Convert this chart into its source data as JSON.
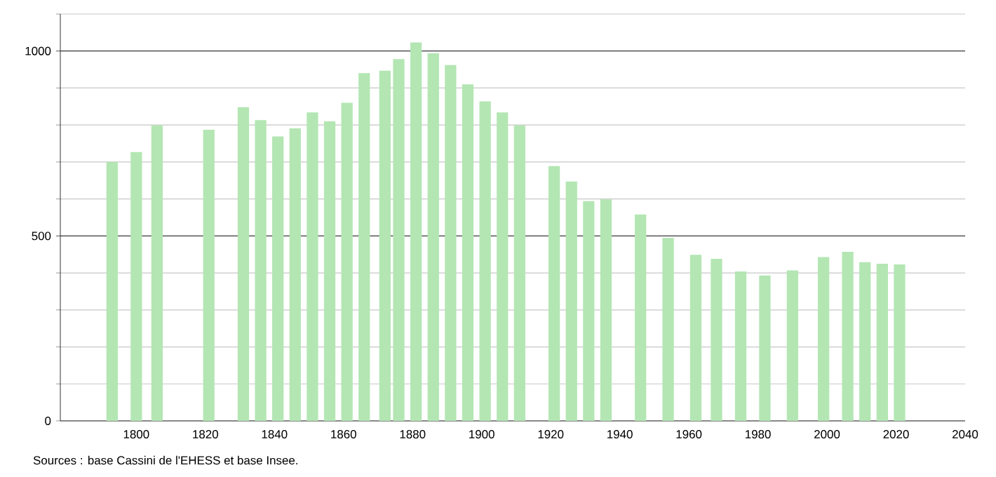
{
  "chart_data": {
    "type": "bar",
    "x": [
      1793,
      1800,
      1806,
      1821,
      1831,
      1836,
      1841,
      1846,
      1851,
      1856,
      1861,
      1866,
      1872,
      1876,
      1881,
      1886,
      1891,
      1896,
      1901,
      1906,
      1911,
      1921,
      1926,
      1931,
      1936,
      1946,
      1954,
      1962,
      1968,
      1975,
      1982,
      1990,
      1999,
      2006,
      2011,
      2016,
      2021
    ],
    "values": [
      700,
      727,
      799,
      787,
      848,
      813,
      769,
      791,
      834,
      810,
      860,
      940,
      947,
      978,
      1023,
      994,
      962,
      910,
      864,
      834,
      799,
      689,
      647,
      594,
      599,
      558,
      495,
      449,
      438,
      404,
      393,
      407,
      443,
      457,
      429,
      425,
      423
    ],
    "color": "#b3e6b3",
    "xlim": [
      1778,
      2040
    ],
    "xticks": [
      1800,
      1820,
      1840,
      1860,
      1880,
      1900,
      1920,
      1940,
      1960,
      1980,
      2000,
      2020,
      2040
    ],
    "ylim": [
      0,
      1100
    ],
    "yticks": [
      0,
      {
        "value": 100,
        "label": null
      },
      {
        "value": 200,
        "label": null
      },
      {
        "value": 300,
        "label": null
      },
      {
        "value": 400,
        "label": null
      },
      500,
      {
        "value": 600,
        "label": null
      },
      {
        "value": 700,
        "label": null
      },
      {
        "value": 800,
        "label": null
      },
      {
        "value": 900,
        "label": null
      },
      1000,
      {
        "value": 1100,
        "label": null
      }
    ],
    "grid": "y",
    "annotations": [
      "Sources : base Cassini de l'EHESS et base Insee."
    ]
  }
}
